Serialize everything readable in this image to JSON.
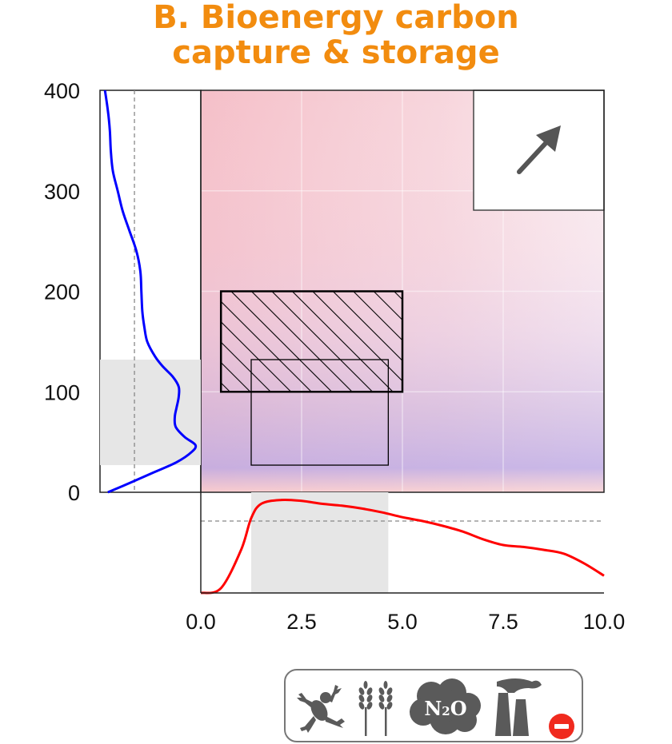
{
  "chart_data": {
    "type": "heatmap",
    "title": "B. Bioenergy carbon capture & storage",
    "title_lines": [
      "B. Bioenergy carbon",
      "capture & storage"
    ],
    "xlim": [
      0,
      10
    ],
    "ylim": [
      0,
      400
    ],
    "xticks": [
      0,
      2.5,
      5,
      7.5,
      10
    ],
    "xtick_labels": [
      "0.0",
      "2.5",
      "5.0",
      "7.5",
      "10.0"
    ],
    "yticks": [
      0,
      100,
      200,
      300,
      400
    ],
    "ytick_labels": [
      "0",
      "100",
      "200",
      "300",
      "400"
    ],
    "grid": true,
    "hatched_range": {
      "x": [
        0.5,
        5.0
      ],
      "y": [
        100,
        200
      ]
    },
    "interval_box": {
      "x": [
        1.25,
        4.65
      ],
      "y": [
        27,
        132
      ]
    },
    "x_density": {
      "color": "#FF0000",
      "x": [
        0,
        0.5,
        1.0,
        1.25,
        1.5,
        2.0,
        2.5,
        3.0,
        3.5,
        4.0,
        4.5,
        5.0,
        5.5,
        6.0,
        6.5,
        7.0,
        7.5,
        8.0,
        8.5,
        9.0,
        9.5,
        10.0
      ],
      "density": [
        0.0,
        0.05,
        0.45,
        0.78,
        0.93,
        0.97,
        0.96,
        0.93,
        0.91,
        0.88,
        0.84,
        0.79,
        0.75,
        0.7,
        0.64,
        0.56,
        0.5,
        0.48,
        0.45,
        0.41,
        0.31,
        0.18
      ],
      "median": 4.6,
      "mean_density_line": 0.75
    },
    "y_density": {
      "color": "#0000FF",
      "y": [
        0,
        10,
        20,
        30,
        40,
        47,
        55,
        65,
        75,
        85,
        95,
        105,
        115,
        125,
        135,
        150,
        165,
        180,
        200,
        220,
        240,
        260,
        280,
        300,
        320,
        340,
        360,
        380,
        400
      ],
      "density": [
        0.08,
        0.32,
        0.55,
        0.78,
        0.93,
        0.97,
        0.86,
        0.77,
        0.76,
        0.78,
        0.8,
        0.8,
        0.74,
        0.64,
        0.56,
        0.48,
        0.45,
        0.43,
        0.42,
        0.41,
        0.37,
        0.3,
        0.23,
        0.18,
        0.13,
        0.11,
        0.1,
        0.08,
        0.05
      ],
      "mean": 132,
      "mean_density_line": 0.35
    },
    "trend_arrow": "up-right"
  },
  "icons": [
    "frog-icon",
    "wheat-icon",
    "n2o-cloud-icon",
    "factory-icon",
    "minus-badge-icon"
  ],
  "n2o_label_main": "N",
  "n2o_label_sub": "2",
  "n2o_label_tail": "O",
  "colors": {
    "title": "#F28C0F",
    "heat_red": "#F4B8C2",
    "heat_blue": "#C8B6E6",
    "x_density": "#FF0000",
    "y_density": "#0000FF",
    "highlight": "#E6E6E6",
    "minus_badge": "#F02A1E",
    "icon_gray": "#5A5A5A"
  }
}
